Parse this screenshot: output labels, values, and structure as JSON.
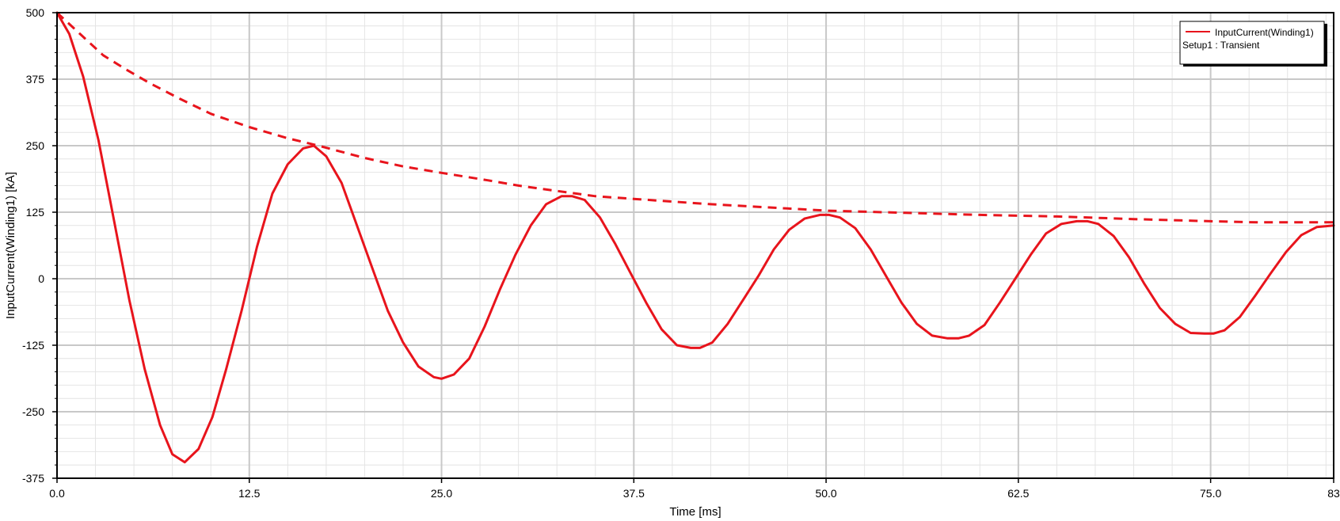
{
  "chart_data": {
    "type": "line",
    "title": "",
    "xlabel": "Time [ms]",
    "ylabel": "InputCurrent(Winding1) [kA]",
    "xlim": [
      0,
      83
    ],
    "ylim": [
      -375,
      500
    ],
    "x_ticks": [
      "0.0",
      "12.5",
      "25.0",
      "37.5",
      "50.0",
      "62.5",
      "75.0",
      "83"
    ],
    "y_ticks": [
      "500",
      "375",
      "250",
      "125",
      "0",
      "-125",
      "-250",
      "-375"
    ],
    "grid": true,
    "legend_position": "top-right",
    "legend": {
      "entry": "InputCurrent(Winding1)",
      "subtitle": "Setup1 : Transient"
    },
    "colors": {
      "series": "#e8141c",
      "grid": "#c8c8c8",
      "frame": "#000000"
    },
    "series": [
      {
        "name": "InputCurrent(Winding1)",
        "style": "solid",
        "x": [
          0,
          0.8,
          1.7,
          2.7,
          3.7,
          4.7,
          5.7,
          6.7,
          7.5,
          8.3,
          9.2,
          10.1,
          11.0,
          12.0,
          13.0,
          14.0,
          15.0,
          16.0,
          16.7,
          17.5,
          18.5,
          19.5,
          20.5,
          21.5,
          22.5,
          23.5,
          24.5,
          25.0,
          25.8,
          26.8,
          27.8,
          28.8,
          29.8,
          30.8,
          31.8,
          32.8,
          33.5,
          34.3,
          35.3,
          36.3,
          37.3,
          38.3,
          39.3,
          40.3,
          41.2,
          41.8,
          42.6,
          43.6,
          44.6,
          45.6,
          46.6,
          47.6,
          48.6,
          49.6,
          50.2,
          50.9,
          51.9,
          52.9,
          53.9,
          54.9,
          55.9,
          56.9,
          57.9,
          58.6,
          59.3,
          60.3,
          61.3,
          62.3,
          63.3,
          64.3,
          65.3,
          66.3,
          67.0,
          67.7,
          68.7,
          69.7,
          70.7,
          71.7,
          72.7,
          73.7,
          74.6,
          75.2,
          75.9,
          76.9,
          77.9,
          78.9,
          79.9,
          80.9,
          81.9,
          83.0
        ],
        "y": [
          500,
          460,
          380,
          260,
          110,
          -40,
          -170,
          -275,
          -330,
          -345,
          -320,
          -260,
          -170,
          -60,
          60,
          160,
          215,
          245,
          250,
          230,
          180,
          100,
          20,
          -60,
          -120,
          -165,
          -185,
          -188,
          -180,
          -150,
          -90,
          -20,
          45,
          100,
          140,
          155,
          155,
          148,
          115,
          65,
          10,
          -45,
          -95,
          -125,
          -130,
          -130,
          -120,
          -85,
          -40,
          5,
          55,
          92,
          113,
          120,
          120,
          115,
          95,
          55,
          5,
          -45,
          -85,
          -107,
          -112,
          -112,
          -107,
          -87,
          -45,
          0,
          45,
          85,
          103,
          108,
          108,
          103,
          80,
          40,
          -10,
          -55,
          -85,
          -102,
          -103,
          -103,
          -97,
          -72,
          -32,
          10,
          50,
          82,
          97,
          100
        ]
      },
      {
        "name": "",
        "style": "dashed",
        "x": [
          0,
          1.5,
          3.0,
          4.5,
          6.0,
          8.0,
          10.0,
          12.5,
          15.0,
          17.0,
          20.0,
          22.5,
          25.0,
          28.0,
          30.0,
          33.0,
          35.0,
          37.5,
          40.0,
          42.5,
          45.0,
          47.5,
          50.0,
          55.0,
          60.0,
          65.0,
          70.0,
          75.0,
          78.0,
          83.0
        ],
        "y": [
          500,
          460,
          420,
          393,
          368,
          338,
          310,
          285,
          264,
          250,
          227,
          211,
          199,
          185,
          175,
          163,
          155,
          150,
          145,
          140,
          136,
          132,
          128,
          124,
          120,
          117,
          112,
          108,
          106,
          106
        ]
      }
    ]
  }
}
